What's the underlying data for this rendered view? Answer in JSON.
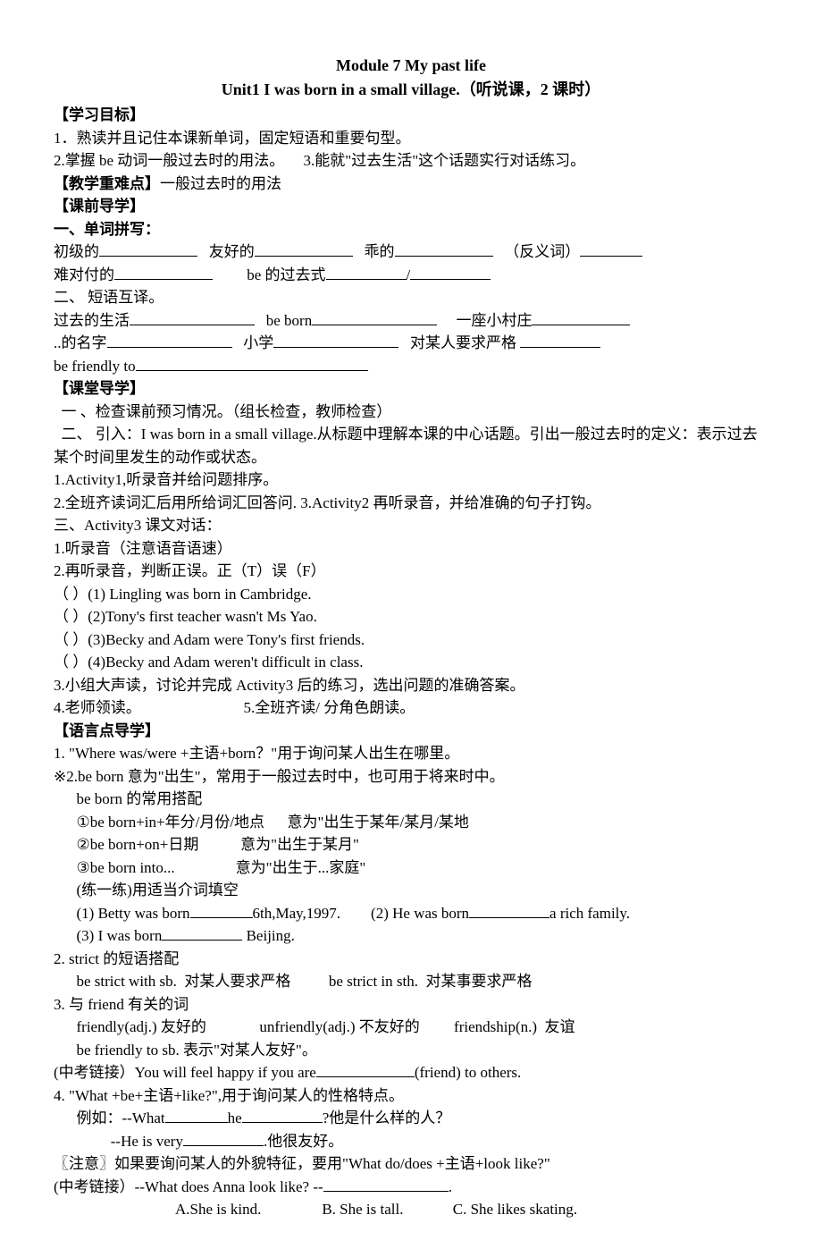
{
  "title1": "Module 7 My past life",
  "title2": "Unit1 I was born in a small village.（听说课，2 课时）",
  "s1": {
    "head": "【学习目标】",
    "l1": "1．熟读并且记住本课新单词，固定短语和重要句型。",
    "l2a": "2.掌握 be 动词一般过去时的用法。",
    "l2b": "3.能就\"过去生活\"这个话题实行对话练习。"
  },
  "s2": {
    "head": "【教学重难点】",
    "text": "一般过去时的用法"
  },
  "s3": {
    "head": "【课前导学】",
    "sub1": "一、单词拼写：",
    "w1": "初级的",
    "w2": "友好的",
    "w3": "乖的",
    "w4": "（反义词）",
    "w5": "难对付的",
    "w6": "be 的过去式",
    "w7": "/",
    "sub2": "二、 短语互译。",
    "p1": "过去的生活",
    "p2": "be born",
    "p3": "一座小村庄",
    "p4": "..的名字",
    "p5": "小学",
    "p6": "对某人要求严格",
    "p7": "be friendly to"
  },
  "s4": {
    "head": "【课堂导学】",
    "l1": "  一 、检查课前预习情况。（组长检查，教师检查）",
    "l2": "  二、 引入：I was born in a small village.从标题中理解本课的中心话题。引出一般过去时的定义：表示过去某个时间里发生的动作或状态。",
    "l3": "1.Activity1,听录音并给问题排序。",
    "l4": "2.全班齐读词汇后用所给词汇回答问. 3.Activity2 再听录音，并给准确的句子打钩。",
    "l5": "三、Activity3 课文对话：",
    "l6": "1.听录音（注意语音语速）",
    "l7": "2.再听录音，判断正误。正（T）误（F）",
    "q1": "（       ）(1) Lingling was born in Cambridge.",
    "q2": "（       ）(2)Tony's first teacher wasn't Ms Yao.",
    "q3": "（       ）(3)Becky and Adam were Tony's first friends.",
    "q4": "（       ）(4)Becky and Adam weren't difficult in class.",
    "l8": "3.小组大声读，讨论并完成 Activity3 后的练习，选出问题的准确答案。",
    "l9a": "4.老师领读。",
    "l9b": "5.全班齐读/ 分角色朗读。"
  },
  "s5": {
    "head": "【语言点导学】",
    "g1": "1. \"Where was/were +主语+born？\"用于询问某人出生在哪里。",
    "g2": "※2.be born 意为\"出生\"，常用于一般过去时中，也可用于将来时中。",
    "g2a": "be born  的常用搭配",
    "g2b": "①be born+in+年分/月份/地点      意为\"出生于某年/某月/某地",
    "g2c": "②be born+on+日期           意为\"出生于某月\"",
    "g2d": "③be born into...                意为\"出生于...家庭\"",
    "g2e": "(练一练)用适当介词填空",
    "g2f1": "(1) Betty was born",
    "g2f2": "6th,May,1997.",
    "g2f3": "(2) He was born",
    "g2f4": "a rich family.",
    "g2g1": "(3) I was born",
    "g2g2": "Beijing.",
    "g3": "2. strict 的短语搭配",
    "g3a": "be strict with sb.  对某人要求严格          be strict in sth.  对某事要求严格",
    "g4": "3.  与 friend  有关的词",
    "g4a": "friendly(adj.) 友好的              unfriendly(adj.) 不友好的         friendship(n.)  友谊",
    "g4b": "be friendly to sb. 表示\"对某人友好\"。",
    "g4c1": "(中考链接）You will feel happy if you are",
    "g4c2": "(friend) to others.",
    "g5": "4. \"What +be+主语+like?\",用于询问某人的性格特点。",
    "g5a1": "例如：--What",
    "g5a2": "he",
    "g5a3": "?他是什么样的人？",
    "g5b1": "--He is very",
    "g5b2": ".他很友好。",
    "g5c": "〖注意〗如果要询问某人的外貌特征，要用\"What do/does +主语+look like?\"",
    "g5d1": "(中考链接）--What does Anna look like?     --",
    "g5d2": ".",
    "g5e": "A.She is kind.                B. She is tall.             C. She likes skating."
  }
}
